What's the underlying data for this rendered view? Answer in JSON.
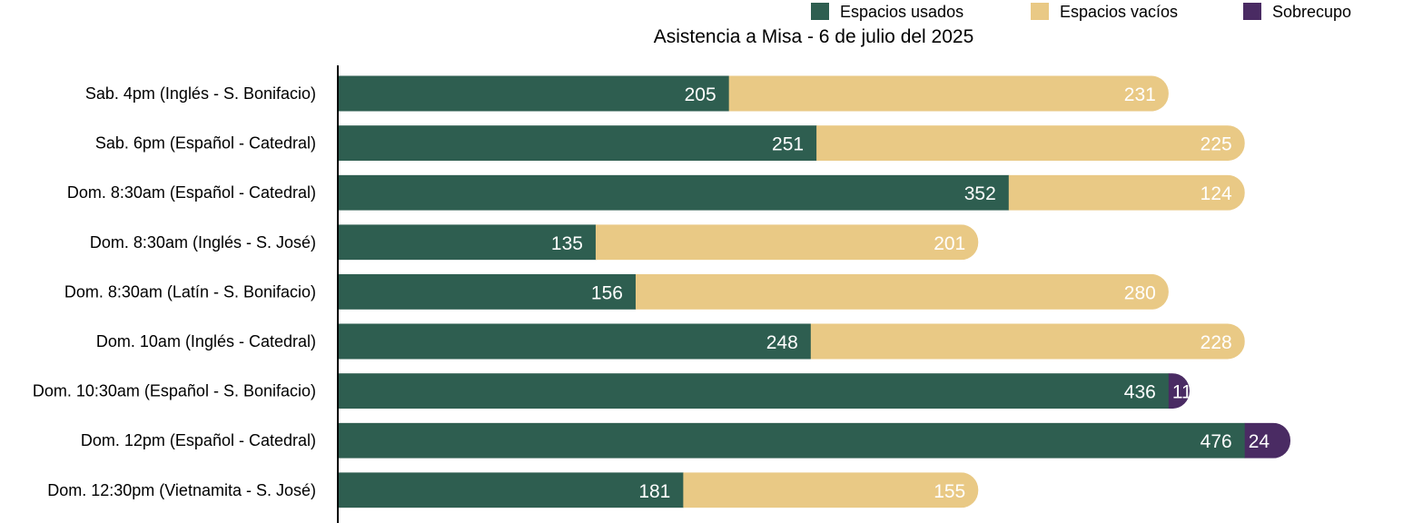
{
  "chart_data": {
    "type": "bar",
    "orientation": "horizontal",
    "stacked": true,
    "title": "Asistencia a Misa - 6 de julio del 2025",
    "categories": [
      "Sab. 4pm (Inglés - S. Bonifacio)",
      "Sab. 6pm (Español - Catedral)",
      "Dom. 8:30am (Español - Catedral)",
      "Dom. 8:30am (Inglés - S. José)",
      "Dom. 8:30am (Latín - S. Bonifacio)",
      "Dom. 10am (Inglés - Catedral)",
      "Dom. 10:30am (Español - S. Bonifacio)",
      "Dom. 12pm (Español - Catedral)",
      "Dom. 12:30pm (Vietnamita - S. José)"
    ],
    "series": [
      {
        "name": "Espacios usados",
        "color": "#2e5e50",
        "values": [
          205,
          251,
          352,
          135,
          156,
          248,
          436,
          476,
          181
        ]
      },
      {
        "name": "Espacios vacíos",
        "color": "#e9c985",
        "values": [
          231,
          225,
          124,
          201,
          280,
          228,
          0,
          0,
          155
        ]
      },
      {
        "name": "Sobrecupo",
        "color": "#4a2b63",
        "values": [
          0,
          0,
          0,
          0,
          0,
          0,
          11,
          24,
          0
        ]
      }
    ],
    "legend_position": "top-right",
    "grid": false,
    "xlim": [
      0,
      500
    ]
  }
}
